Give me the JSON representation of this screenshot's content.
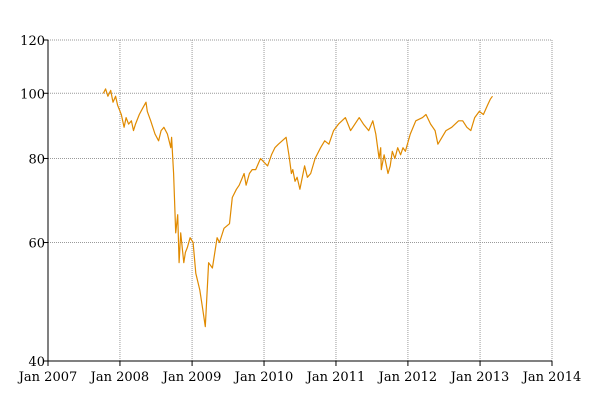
{
  "chart_data": {
    "type": "line",
    "title": "",
    "xlabel": "",
    "ylabel": "",
    "y_scale": "log",
    "grid": true,
    "legend": "none",
    "xlim": [
      "2007-01-01",
      "2014-01-01"
    ],
    "ylim": [
      40,
      120
    ],
    "x_ticks": [
      {
        "date": "2007-01-01",
        "label": "Jan 2007"
      },
      {
        "date": "2008-01-01",
        "label": "Jan 2008"
      },
      {
        "date": "2009-01-01",
        "label": "Jan 2009"
      },
      {
        "date": "2010-01-01",
        "label": "Jan 2010"
      },
      {
        "date": "2011-01-01",
        "label": "Jan 2011"
      },
      {
        "date": "2012-01-01",
        "label": "Jan 2012"
      },
      {
        "date": "2013-01-01",
        "label": "Jan 2013"
      },
      {
        "date": "2014-01-01",
        "label": "Jan 2014"
      }
    ],
    "y_ticks": [
      {
        "value": 40,
        "label": "40"
      },
      {
        "value": 60,
        "label": "60"
      },
      {
        "value": 80,
        "label": "80"
      },
      {
        "value": 100,
        "label": "100"
      },
      {
        "value": 120,
        "label": "120"
      }
    ],
    "series": [
      {
        "color": "#e08a00",
        "x": [
          "2007-10-09",
          "2007-10-20",
          "2007-11-01",
          "2007-11-15",
          "2007-11-27",
          "2007-12-10",
          "2007-12-20",
          "2008-01-08",
          "2008-01-22",
          "2008-02-01",
          "2008-02-14",
          "2008-02-28",
          "2008-03-10",
          "2008-03-20",
          "2008-04-08",
          "2008-04-25",
          "2008-05-12",
          "2008-05-19",
          "2008-06-05",
          "2008-06-27",
          "2008-07-15",
          "2008-07-28",
          "2008-08-11",
          "2008-08-29",
          "2008-09-15",
          "2008-09-19",
          "2008-09-29",
          "2008-10-10",
          "2008-10-20",
          "2008-10-27",
          "2008-11-04",
          "2008-11-20",
          "2008-11-28",
          "2008-12-08",
          "2008-12-22",
          "2009-01-06",
          "2009-01-20",
          "2009-02-09",
          "2009-02-23",
          "2009-03-09",
          "2009-03-20",
          "2009-03-26",
          "2009-04-14",
          "2009-05-08",
          "2009-05-20",
          "2009-06-12",
          "2009-07-10",
          "2009-07-24",
          "2009-08-14",
          "2009-08-28",
          "2009-09-22",
          "2009-10-02",
          "2009-10-19",
          "2009-11-02",
          "2009-11-20",
          "2009-12-14",
          "2010-01-19",
          "2010-02-08",
          "2010-02-25",
          "2010-03-15",
          "2010-04-23",
          "2010-05-07",
          "2010-05-20",
          "2010-05-27",
          "2010-06-07",
          "2010-06-18",
          "2010-07-02",
          "2010-07-26",
          "2010-08-09",
          "2010-08-26",
          "2010-09-17",
          "2010-10-15",
          "2010-11-05",
          "2010-11-26",
          "2010-12-20",
          "2011-01-14",
          "2011-02-18",
          "2011-03-16",
          "2011-04-29",
          "2011-05-20",
          "2011-06-16",
          "2011-07-07",
          "2011-07-22",
          "2011-08-08",
          "2011-08-16",
          "2011-08-19",
          "2011-09-02",
          "2011-09-22",
          "2011-10-03",
          "2011-10-14",
          "2011-10-27",
          "2011-11-10",
          "2011-11-25",
          "2011-12-07",
          "2011-12-19",
          "2012-01-13",
          "2012-02-10",
          "2012-03-15",
          "2012-04-02",
          "2012-04-25",
          "2012-05-18",
          "2012-06-01",
          "2012-06-22",
          "2012-07-12",
          "2012-08-10",
          "2012-09-14",
          "2012-10-05",
          "2012-10-26",
          "2012-11-15",
          "2012-12-05",
          "2012-12-28",
          "2013-01-18",
          "2013-02-08",
          "2013-02-22",
          "2013-03-05"
        ],
        "y": [
          100,
          101.5,
          99,
          101,
          97,
          99,
          96,
          93,
          89,
          92,
          90,
          91,
          88,
          90,
          93,
          95,
          97,
          94,
          91,
          87,
          85,
          88,
          89,
          87,
          83,
          86,
          76,
          62,
          66,
          56,
          62,
          56,
          58,
          59,
          61,
          60,
          54,
          51,
          48,
          45,
          52,
          56,
          55,
          61,
          60,
          63,
          64,
          70,
          72,
          73,
          76,
          73,
          76,
          77,
          77,
          80,
          78,
          81,
          83,
          84,
          86,
          81,
          76,
          77,
          74,
          75,
          72,
          78,
          75,
          76,
          80,
          83,
          85,
          84,
          88,
          90,
          92,
          88,
          92,
          90,
          88,
          91,
          87,
          80,
          83,
          77,
          81,
          76,
          78,
          82,
          80,
          83,
          81,
          83,
          82,
          87,
          91,
          92,
          93,
          90,
          88,
          84,
          86,
          88,
          89,
          91,
          91,
          89,
          88,
          92,
          94,
          93,
          96,
          98,
          99
        ]
      }
    ]
  }
}
